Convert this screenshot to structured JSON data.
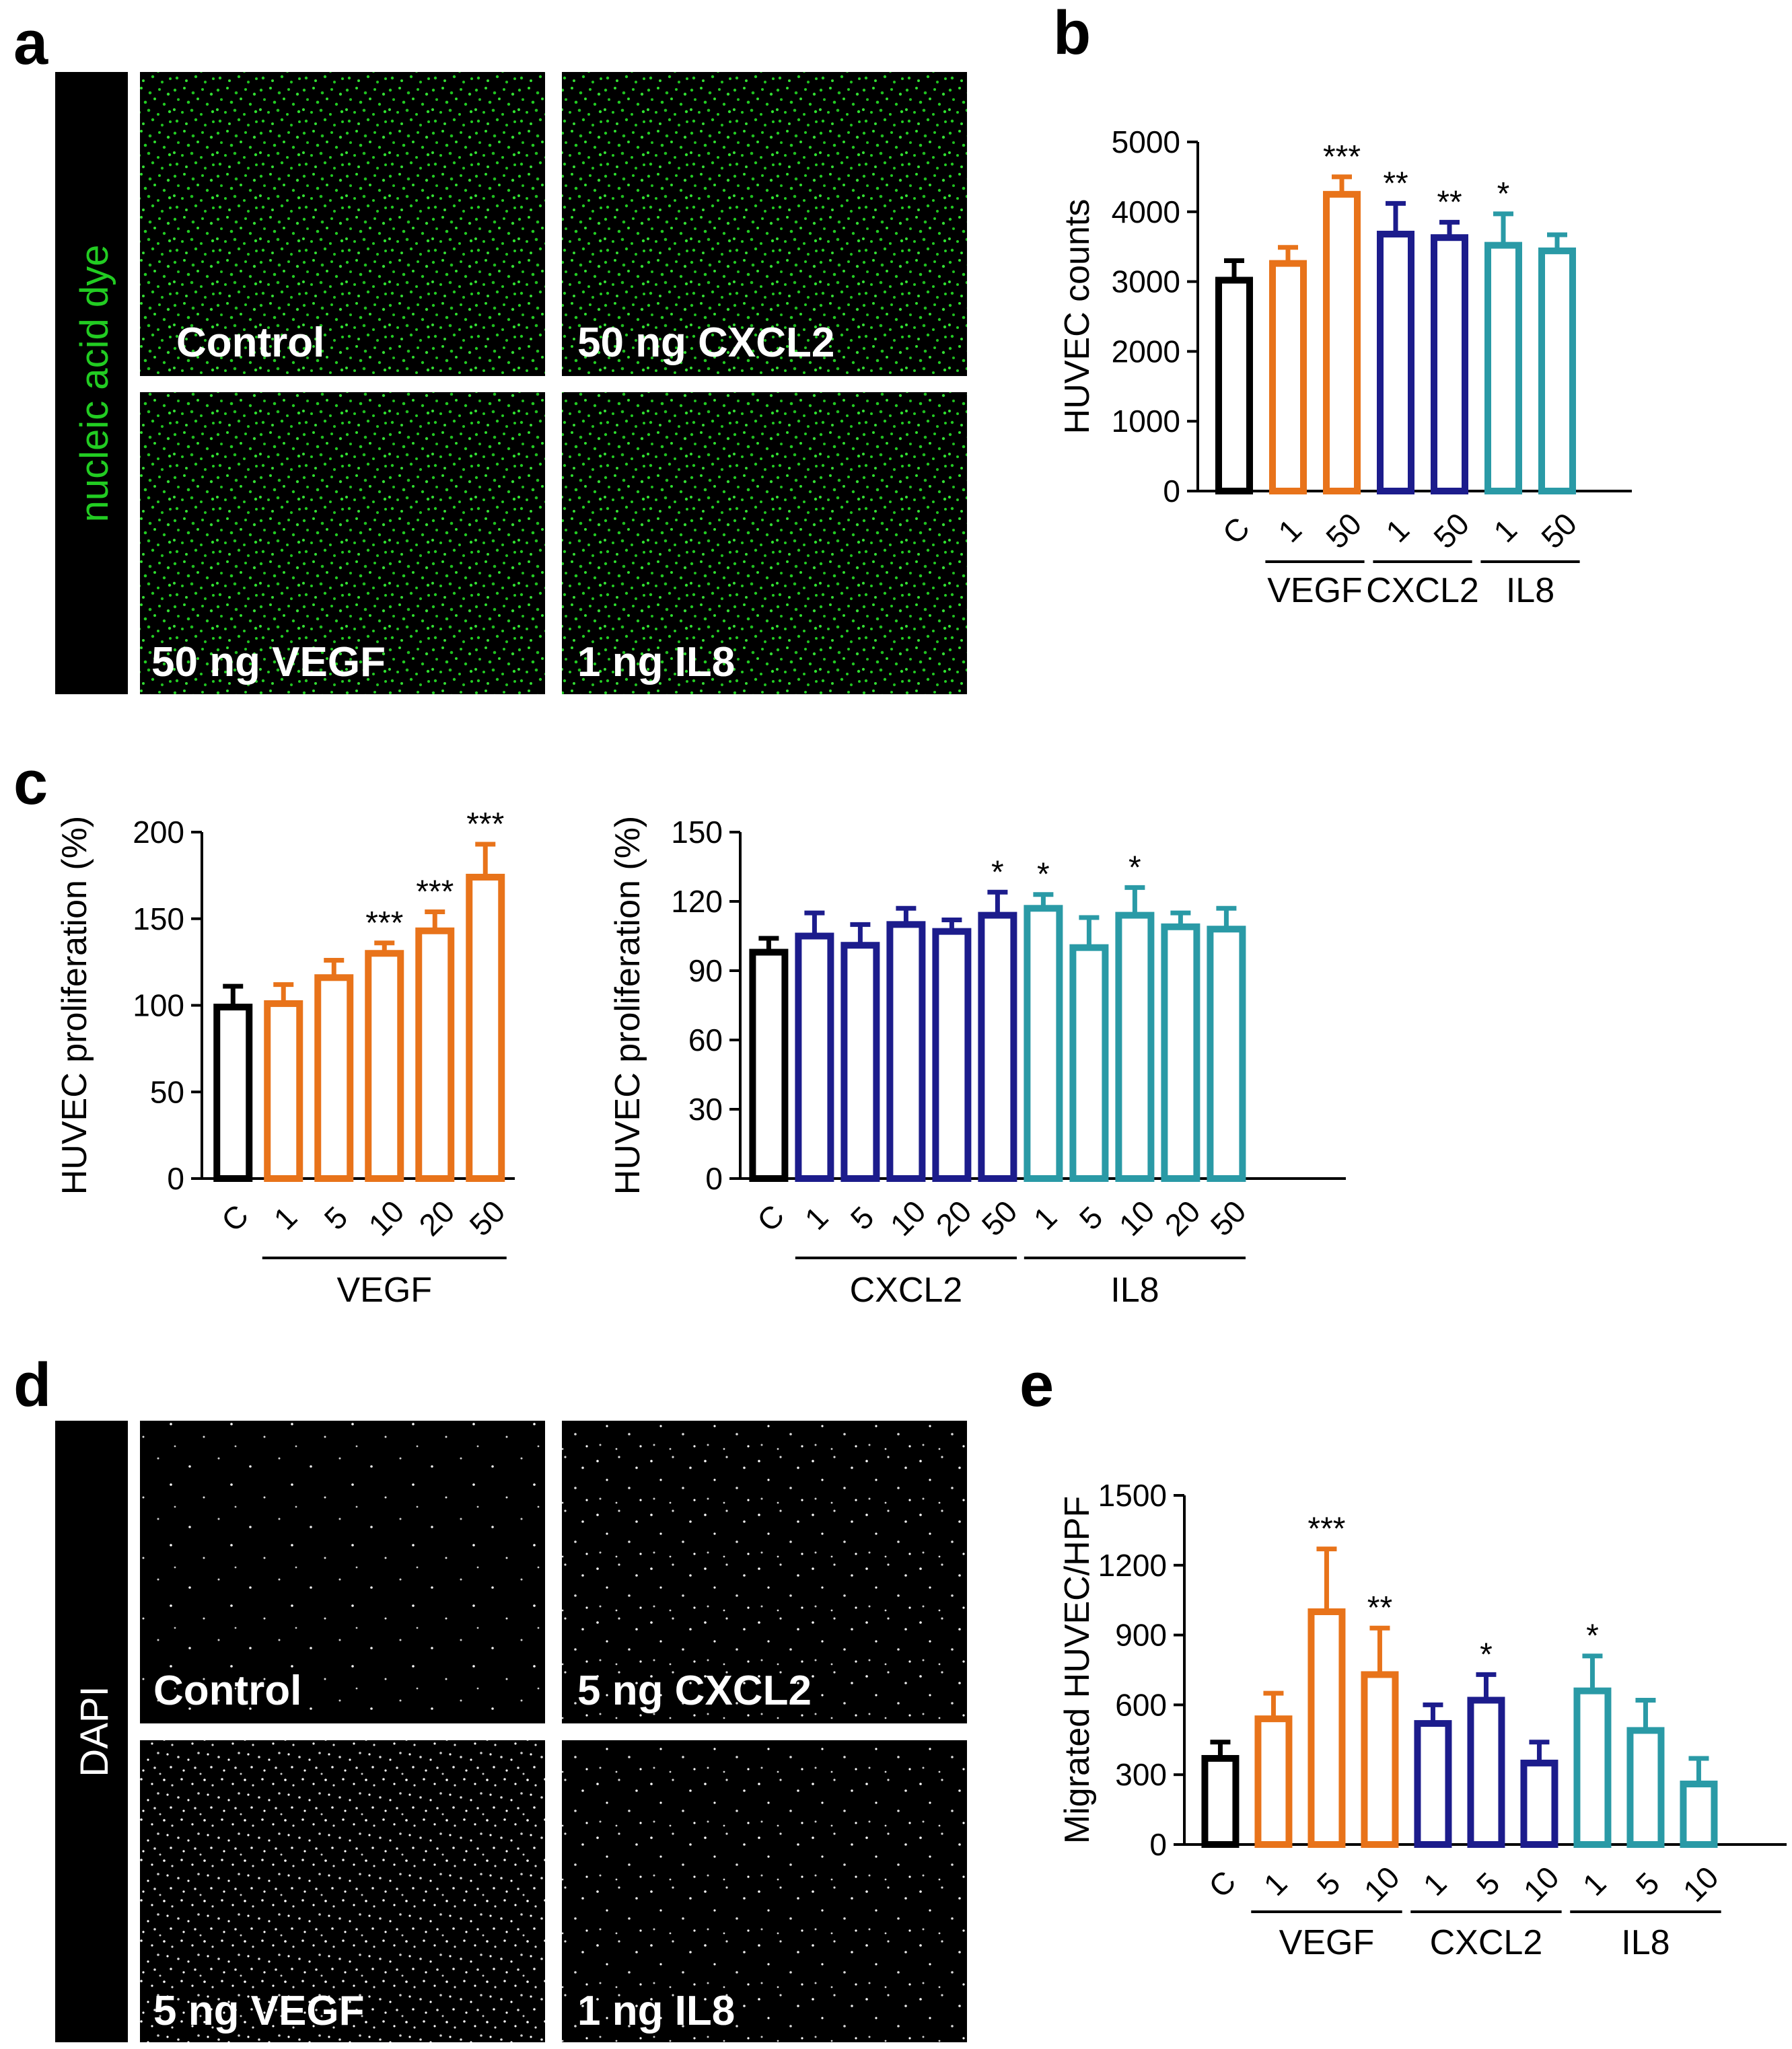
{
  "panel_letters": [
    "a",
    "b",
    "c",
    "d",
    "e"
  ],
  "panel_a": {
    "stain_label": "nucleic acid dye",
    "stain_color": "#22cc22",
    "bg_color": "#000000",
    "images": [
      {
        "label": "Control"
      },
      {
        "label": "50 ng CXCL2"
      },
      {
        "label": "50 ng VEGF"
      },
      {
        "label": "1 ng IL8"
      }
    ]
  },
  "panel_d": {
    "stain_label": "DAPI",
    "stain_color": "#ffffff",
    "bg_color": "#000000",
    "images": [
      {
        "label": "Control"
      },
      {
        "label": "5 ng CXCL2"
      },
      {
        "label": "5 ng VEGF"
      },
      {
        "label": "1 ng IL8"
      }
    ]
  },
  "colors": {
    "control": "#000000",
    "VEGF": "#e8731a",
    "CXCL2": "#1c1c8c",
    "IL8": "#2a9aa6"
  },
  "chart_data": [
    {
      "id": "b",
      "type": "bar",
      "ylabel": "HUVEC counts",
      "ylim": [
        0,
        5000
      ],
      "yticks": [
        0,
        1000,
        2000,
        3000,
        4000,
        5000
      ],
      "categories": [
        "C",
        "1",
        "50",
        "1",
        "50",
        "1",
        "50"
      ],
      "groups": [
        "control",
        "VEGF",
        "VEGF",
        "CXCL2",
        "CXCL2",
        "IL8",
        "IL8"
      ],
      "values": [
        3020,
        3260,
        4250,
        3680,
        3630,
        3520,
        3440
      ],
      "errors": [
        280,
        230,
        250,
        440,
        220,
        450,
        230
      ],
      "significance": [
        "",
        "",
        "***",
        "**",
        "**",
        "*",
        ""
      ],
      "group_labels": [
        {
          "name": "VEGF",
          "from": 1,
          "to": 2
        },
        {
          "name": "CXCL2",
          "from": 3,
          "to": 4
        },
        {
          "name": "IL8",
          "from": 5,
          "to": 6
        }
      ]
    },
    {
      "id": "c1",
      "type": "bar",
      "ylabel": "HUVEC proliferation (%)",
      "ylim": [
        0,
        200
      ],
      "yticks": [
        0,
        50,
        100,
        150,
        200
      ],
      "categories": [
        "C",
        "1",
        "5",
        "10",
        "20",
        "50"
      ],
      "groups": [
        "control",
        "VEGF",
        "VEGF",
        "VEGF",
        "VEGF",
        "VEGF"
      ],
      "values": [
        99,
        101,
        116,
        130,
        143,
        174
      ],
      "errors": [
        12,
        11,
        10,
        6,
        11,
        19
      ],
      "significance": [
        "",
        "",
        "",
        "***",
        "***",
        "***"
      ],
      "group_labels": [
        {
          "name": "VEGF",
          "from": 1,
          "to": 5
        }
      ]
    },
    {
      "id": "c2",
      "type": "bar",
      "ylabel": "HUVEC proliferation (%)",
      "ylim": [
        0,
        150
      ],
      "yticks": [
        0,
        30,
        60,
        90,
        120,
        150
      ],
      "categories": [
        "C",
        "1",
        "5",
        "10",
        "20",
        "50",
        "1",
        "5",
        "10",
        "20",
        "50"
      ],
      "groups": [
        "control",
        "CXCL2",
        "CXCL2",
        "CXCL2",
        "CXCL2",
        "CXCL2",
        "IL8",
        "IL8",
        "IL8",
        "IL8",
        "IL8"
      ],
      "values": [
        98,
        105,
        101,
        110,
        107,
        114,
        117,
        100,
        114,
        109,
        108
      ],
      "errors": [
        6,
        10,
        9,
        7,
        5,
        10,
        6,
        13,
        12,
        6,
        9
      ],
      "significance": [
        "",
        "",
        "",
        "",
        "",
        "*",
        "*",
        "",
        "*",
        "",
        ""
      ],
      "group_labels": [
        {
          "name": "CXCL2",
          "from": 1,
          "to": 5
        },
        {
          "name": "IL8",
          "from": 6,
          "to": 10
        }
      ]
    },
    {
      "id": "e",
      "type": "bar",
      "ylabel": "Migrated HUVEC/HPF",
      "ylim": [
        0,
        1500
      ],
      "yticks": [
        0,
        300,
        600,
        900,
        1200,
        1500
      ],
      "categories": [
        "C",
        "1",
        "5",
        "10",
        "1",
        "5",
        "10",
        "1",
        "5",
        "10"
      ],
      "groups": [
        "control",
        "VEGF",
        "VEGF",
        "VEGF",
        "CXCL2",
        "CXCL2",
        "CXCL2",
        "IL8",
        "IL8",
        "IL8"
      ],
      "values": [
        370,
        540,
        1000,
        730,
        520,
        620,
        350,
        660,
        490,
        260
      ],
      "errors": [
        70,
        110,
        270,
        200,
        80,
        110,
        90,
        150,
        130,
        110
      ],
      "significance": [
        "",
        "",
        "***",
        "**",
        "",
        "*",
        "",
        "*",
        "",
        ""
      ],
      "group_labels": [
        {
          "name": "VEGF",
          "from": 1,
          "to": 3
        },
        {
          "name": "CXCL2",
          "from": 4,
          "to": 6
        },
        {
          "name": "IL8",
          "from": 7,
          "to": 9
        }
      ]
    }
  ]
}
